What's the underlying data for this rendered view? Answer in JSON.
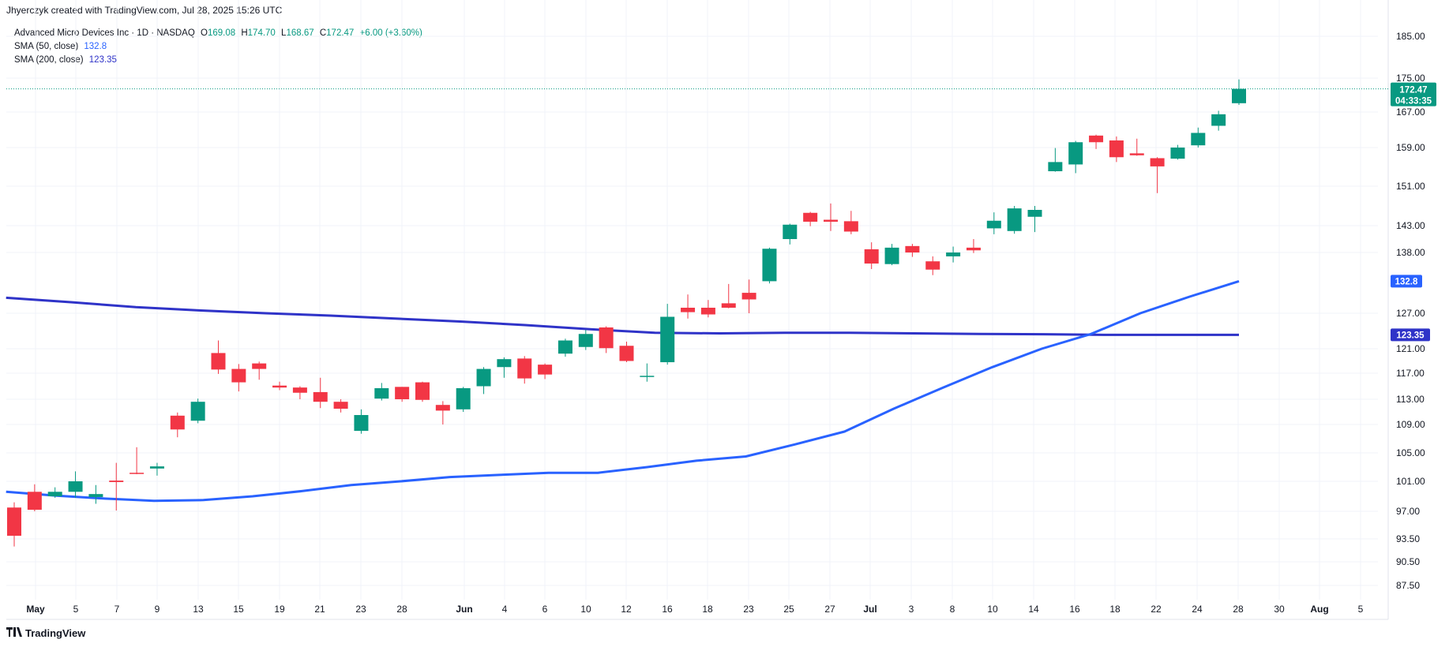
{
  "header": {
    "credit": "Jhyerczyk created with TradingView.com, Jul 28, 2025 15:26 UTC"
  },
  "legend": {
    "symbol": "Advanced Micro Devices Inc · 1D · NASDAQ",
    "open_label": "O",
    "open": "169.08",
    "high_label": "H",
    "high": "174.70",
    "low_label": "L",
    "low": "168.67",
    "close_label": "C",
    "close": "172.47",
    "change": "+6.00 (+3.60%)",
    "sma50_label": "SMA (50, close)",
    "sma50_value": "132.8",
    "sma200_label": "SMA (200, close)",
    "sma200_value": "123.35"
  },
  "footer": {
    "brand": "TradingView"
  },
  "colors": {
    "up": "#089981",
    "down": "#f23645",
    "sma50": "#2962ff",
    "sma200": "#2f33c8",
    "grid": "#f0f3fa",
    "last_price": "#089981"
  },
  "chart_data": {
    "type": "candlestick",
    "y_ticks": [
      "87.50",
      "90.50",
      "93.50",
      "97.00",
      "101.00",
      "105.00",
      "109.00",
      "113.00",
      "117.00",
      "121.00",
      "127.00",
      "138.00",
      "143.00",
      "151.00",
      "159.00",
      "167.00",
      "175.00",
      "185.00"
    ],
    "x_ticks": [
      "May",
      "5",
      "7",
      "9",
      "13",
      "15",
      "19",
      "21",
      "23",
      "28",
      "Jun",
      "4",
      "6",
      "10",
      "12",
      "16",
      "18",
      "23",
      "25",
      "27",
      "Jul",
      "3",
      "8",
      "10",
      "14",
      "16",
      "18",
      "22",
      "24",
      "28",
      "30",
      "Aug",
      "5"
    ],
    "last_price": "172.47",
    "countdown": "04:33:35",
    "sma50_badge": "132.8",
    "sma200_badge": "123.35",
    "candles": [
      {
        "d": "Apr 30",
        "o": 97.5,
        "h": 98.2,
        "l": 92.5,
        "c": 93.9
      },
      {
        "d": "May 1",
        "o": 99.6,
        "h": 100.6,
        "l": 97.0,
        "c": 97.2
      },
      {
        "d": "May 2",
        "o": 99.0,
        "h": 100.2,
        "l": 98.8,
        "c": 99.6
      },
      {
        "d": "May 5",
        "o": 99.6,
        "h": 102.4,
        "l": 98.8,
        "c": 101.0
      },
      {
        "d": "May 6",
        "o": 98.9,
        "h": 100.5,
        "l": 98.0,
        "c": 99.3
      },
      {
        "d": "May 7",
        "o": 101.1,
        "h": 103.6,
        "l": 97.1,
        "c": 100.9
      },
      {
        "d": "May 8",
        "o": 102.2,
        "h": 105.8,
        "l": 102.0,
        "c": 102.1
      },
      {
        "d": "May 9",
        "o": 102.8,
        "h": 103.6,
        "l": 101.8,
        "c": 103.1
      },
      {
        "d": "May 12",
        "o": 110.4,
        "h": 110.9,
        "l": 107.2,
        "c": 108.3
      },
      {
        "d": "May 13",
        "o": 109.6,
        "h": 113.1,
        "l": 109.2,
        "c": 112.6
      },
      {
        "d": "May 14",
        "o": 120.3,
        "h": 122.4,
        "l": 116.9,
        "c": 117.6
      },
      {
        "d": "May 15",
        "o": 117.7,
        "h": 118.5,
        "l": 114.2,
        "c": 115.6
      },
      {
        "d": "May 16",
        "o": 118.6,
        "h": 118.9,
        "l": 116.0,
        "c": 117.7
      },
      {
        "d": "May 19",
        "o": 115.1,
        "h": 115.7,
        "l": 114.4,
        "c": 114.8
      },
      {
        "d": "May 20",
        "o": 114.8,
        "h": 115.0,
        "l": 113.0,
        "c": 114.0
      },
      {
        "d": "May 21",
        "o": 114.1,
        "h": 116.3,
        "l": 111.6,
        "c": 112.6
      },
      {
        "d": "May 22",
        "o": 112.6,
        "h": 113.0,
        "l": 110.9,
        "c": 111.5
      },
      {
        "d": "May 23",
        "o": 108.1,
        "h": 111.4,
        "l": 107.7,
        "c": 110.5
      },
      {
        "d": "May 27",
        "o": 113.1,
        "h": 115.5,
        "l": 112.8,
        "c": 114.7
      },
      {
        "d": "May 28",
        "o": 114.9,
        "h": 114.9,
        "l": 112.6,
        "c": 113.0
      },
      {
        "d": "May 29",
        "o": 115.6,
        "h": 115.7,
        "l": 112.6,
        "c": 112.9
      },
      {
        "d": "May 30",
        "o": 112.1,
        "h": 112.7,
        "l": 109.0,
        "c": 111.2
      },
      {
        "d": "Jun 2",
        "o": 111.4,
        "h": 114.9,
        "l": 111.0,
        "c": 114.7
      },
      {
        "d": "Jun 3",
        "o": 115.0,
        "h": 118.0,
        "l": 113.8,
        "c": 117.7
      },
      {
        "d": "Jun 4",
        "o": 118.0,
        "h": 119.6,
        "l": 116.3,
        "c": 119.3
      },
      {
        "d": "Jun 5",
        "o": 119.4,
        "h": 119.8,
        "l": 115.4,
        "c": 116.2
      },
      {
        "d": "Jun 6",
        "o": 118.4,
        "h": 118.6,
        "l": 116.1,
        "c": 116.8
      },
      {
        "d": "Jun 9",
        "o": 120.2,
        "h": 122.7,
        "l": 119.7,
        "c": 122.4
      },
      {
        "d": "Jun 10",
        "o": 121.3,
        "h": 124.2,
        "l": 120.8,
        "c": 123.5
      },
      {
        "d": "Jun 11",
        "o": 124.6,
        "h": 124.8,
        "l": 120.3,
        "c": 121.1
      },
      {
        "d": "Jun 12",
        "o": 121.5,
        "h": 122.2,
        "l": 118.8,
        "c": 119.0
      },
      {
        "d": "Jun 13",
        "o": 116.5,
        "h": 118.6,
        "l": 115.7,
        "c": 116.6
      },
      {
        "d": "Jun 16",
        "o": 118.8,
        "h": 128.7,
        "l": 118.4,
        "c": 126.4
      },
      {
        "d": "Jun 17",
        "o": 128.0,
        "h": 130.4,
        "l": 126.1,
        "c": 127.2
      },
      {
        "d": "Jun 18",
        "o": 128.0,
        "h": 129.4,
        "l": 126.3,
        "c": 126.8
      },
      {
        "d": "Jun 20",
        "o": 128.8,
        "h": 132.3,
        "l": 127.9,
        "c": 128.0
      },
      {
        "d": "Jun 23",
        "o": 130.7,
        "h": 133.1,
        "l": 127.0,
        "c": 129.5
      },
      {
        "d": "Jun 24",
        "o": 132.8,
        "h": 138.9,
        "l": 132.4,
        "c": 138.7
      },
      {
        "d": "Jun 25",
        "o": 140.5,
        "h": 143.4,
        "l": 139.5,
        "c": 143.2
      },
      {
        "d": "Jun 26",
        "o": 145.6,
        "h": 145.8,
        "l": 142.9,
        "c": 143.8
      },
      {
        "d": "Jun 27",
        "o": 144.2,
        "h": 147.5,
        "l": 142.0,
        "c": 143.8
      },
      {
        "d": "Jun 30",
        "o": 143.9,
        "h": 146.0,
        "l": 141.4,
        "c": 141.9
      },
      {
        "d": "Jul 1",
        "o": 138.6,
        "h": 139.9,
        "l": 135.0,
        "c": 136.0
      },
      {
        "d": "Jul 2",
        "o": 135.9,
        "h": 139.6,
        "l": 135.7,
        "c": 138.9
      },
      {
        "d": "Jul 3",
        "o": 139.2,
        "h": 139.6,
        "l": 137.2,
        "c": 138.0
      },
      {
        "d": "Jul 7",
        "o": 136.4,
        "h": 137.3,
        "l": 133.9,
        "c": 134.9
      },
      {
        "d": "Jul 8",
        "o": 137.3,
        "h": 139.1,
        "l": 136.2,
        "c": 138.0
      },
      {
        "d": "Jul 9",
        "o": 138.9,
        "h": 140.5,
        "l": 137.9,
        "c": 138.4
      },
      {
        "d": "Jul 10",
        "o": 142.5,
        "h": 145.7,
        "l": 141.4,
        "c": 144.0
      },
      {
        "d": "Jul 11",
        "o": 142.0,
        "h": 147.0,
        "l": 141.5,
        "c": 146.5
      },
      {
        "d": "Jul 14",
        "o": 144.8,
        "h": 147.0,
        "l": 141.8,
        "c": 146.2
      },
      {
        "d": "Jul 15",
        "o": 154.1,
        "h": 158.9,
        "l": 154.0,
        "c": 156.0
      },
      {
        "d": "Jul 16",
        "o": 155.5,
        "h": 160.5,
        "l": 153.7,
        "c": 160.2
      },
      {
        "d": "Jul 17",
        "o": 161.7,
        "h": 161.9,
        "l": 158.7,
        "c": 160.2
      },
      {
        "d": "Jul 18",
        "o": 160.6,
        "h": 161.5,
        "l": 156.0,
        "c": 157.0
      },
      {
        "d": "Jul 21",
        "o": 157.8,
        "h": 161.0,
        "l": 157.3,
        "c": 157.4
      },
      {
        "d": "Jul 22",
        "o": 156.8,
        "h": 157.0,
        "l": 149.6,
        "c": 155.1
      },
      {
        "d": "Jul 23",
        "o": 156.7,
        "h": 159.6,
        "l": 156.5,
        "c": 159.0
      },
      {
        "d": "Jul 24",
        "o": 159.5,
        "h": 163.5,
        "l": 159.0,
        "c": 162.3
      },
      {
        "d": "Jul 25",
        "o": 163.9,
        "h": 167.3,
        "l": 162.8,
        "c": 166.5
      },
      {
        "d": "Jul 28",
        "o": 169.08,
        "h": 174.7,
        "l": 168.67,
        "c": 172.47
      }
    ],
    "sma50": [
      99.6,
      99.1,
      98.7,
      98.4,
      98.5,
      99.0,
      99.7,
      100.5,
      101.0,
      101.6,
      101.9,
      102.2,
      102.2,
      103.0,
      103.9,
      104.5,
      106.2,
      108.0,
      111.5,
      114.8,
      118.0,
      121.0,
      123.5,
      127.0,
      130.0,
      132.8
    ],
    "sma200": [
      129.8,
      129.0,
      128.1,
      127.5,
      127.0,
      126.6,
      126.1,
      125.6,
      125.0,
      124.3,
      123.7,
      123.6,
      123.7,
      123.7,
      123.6,
      123.5,
      123.45,
      123.35,
      123.35,
      123.35
    ]
  }
}
